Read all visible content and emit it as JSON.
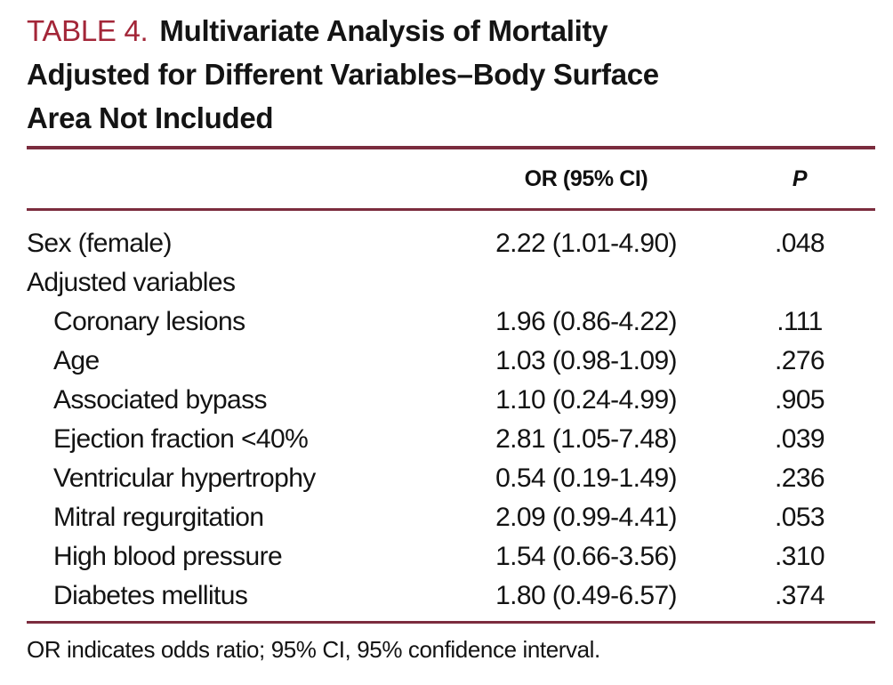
{
  "title": {
    "label": "TABLE 4.",
    "lines": [
      "Multivariate Analysis of Mortality",
      "Adjusted for Different Variables–Body Surface",
      "Area Not Included"
    ]
  },
  "colors": {
    "accent_label": "#a32638",
    "rule": "#7b2c3e",
    "text": "#131313"
  },
  "table": {
    "or_header": "OR (95% CI)",
    "p_header": "P",
    "rows": [
      {
        "label": "Sex (female)",
        "or_ci": "2.22 (1.01-4.90)",
        "p": ".048"
      },
      {
        "label": "Adjusted variables",
        "or_ci": "",
        "p": ""
      },
      {
        "label": "Coronary lesions",
        "or_ci": "1.96 (0.86-4.22)",
        "p": ".111"
      },
      {
        "label": "Age",
        "or_ci": "1.03 (0.98-1.09)",
        "p": ".276"
      },
      {
        "label": "Associated bypass",
        "or_ci": "1.10 (0.24-4.99)",
        "p": ".905"
      },
      {
        "label": "Ejection fraction <40%",
        "or_ci": "2.81 (1.05-7.48)",
        "p": ".039"
      },
      {
        "label": "Ventricular hypertrophy",
        "or_ci": "0.54 (0.19-1.49)",
        "p": ".236"
      },
      {
        "label": "Mitral regurgitation",
        "or_ci": "2.09 (0.99-4.41)",
        "p": ".053"
      },
      {
        "label": "High blood pressure",
        "or_ci": "1.54 (0.66-3.56)",
        "p": ".310"
      },
      {
        "label": "Diabetes mellitus",
        "or_ci": "1.80 (0.49-6.57)",
        "p": ".374"
      }
    ],
    "footnote": "OR indicates odds ratio; 95% CI, 95% confidence interval."
  }
}
